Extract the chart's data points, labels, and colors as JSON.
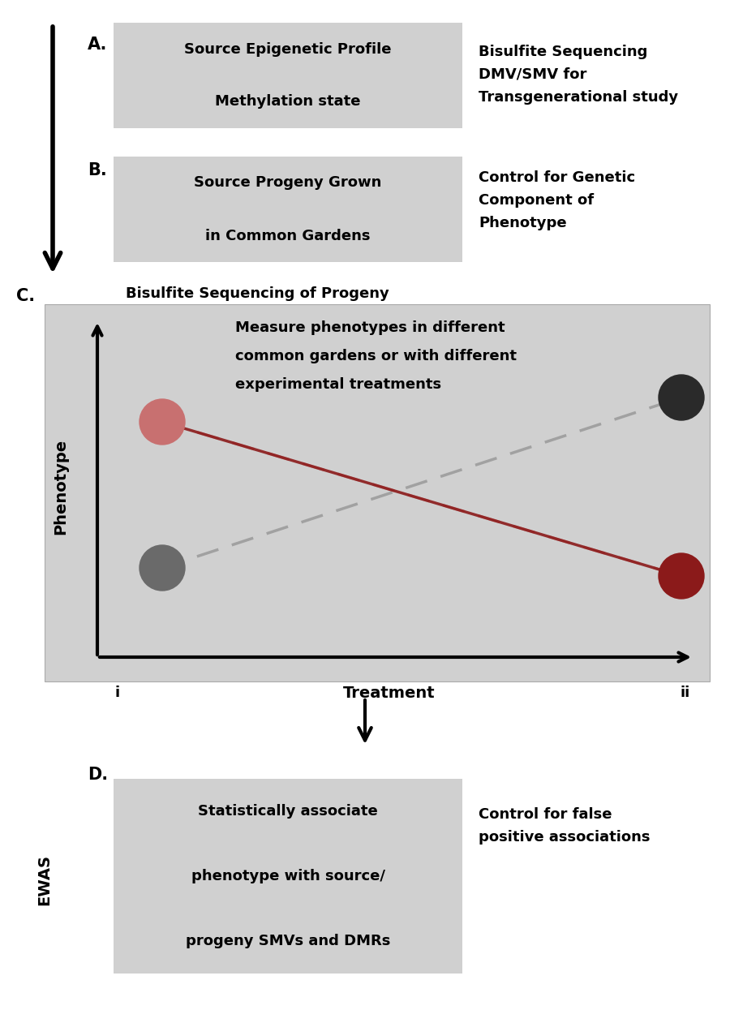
{
  "bg_color": "#ffffff",
  "box_color": "#d0d0d0",
  "plot_bg_color": "#d0d0d0",
  "section_A_lines": [
    "Source Epigenetic Profile",
    "Methylation state"
  ],
  "section_A_note": "Bisulfite Sequencing\nDMV/SMV for\nTransgenerational study",
  "section_B_lines": [
    "Source Progeny Grown",
    "in Common Gardens"
  ],
  "section_B_note": "Control for Genetic\nComponent of\nPhenotype",
  "section_C_title": "Bisulfite Sequencing of Progeny",
  "section_C_annotation_line1": "Measure phenotypes in different",
  "section_C_annotation_line2": "common gardens or with different",
  "section_C_annotation_line3": "experimental treatments",
  "section_C_xlabel": "Treatment",
  "section_C_ylabel": "Phenotype",
  "section_C_xi": "i",
  "section_C_xii": "ii",
  "section_D_label": "D.",
  "section_D_ewas": "EWAS",
  "section_D_box_lines": [
    "Statistically associate",
    "phenotype with source/",
    "progeny SMVs and DMRs"
  ],
  "section_D_note": "Control for false\npositive associations",
  "dot_pink_color": "#c87070",
  "dot_dark_color": "#2a2a2a",
  "dot_gray_color": "#6a6a6a",
  "dot_darkred_color": "#8b1a1a",
  "line_pink_color": "#c87070",
  "line_gray_color": "#999999",
  "line_darkred_color": "#8b1a1a"
}
